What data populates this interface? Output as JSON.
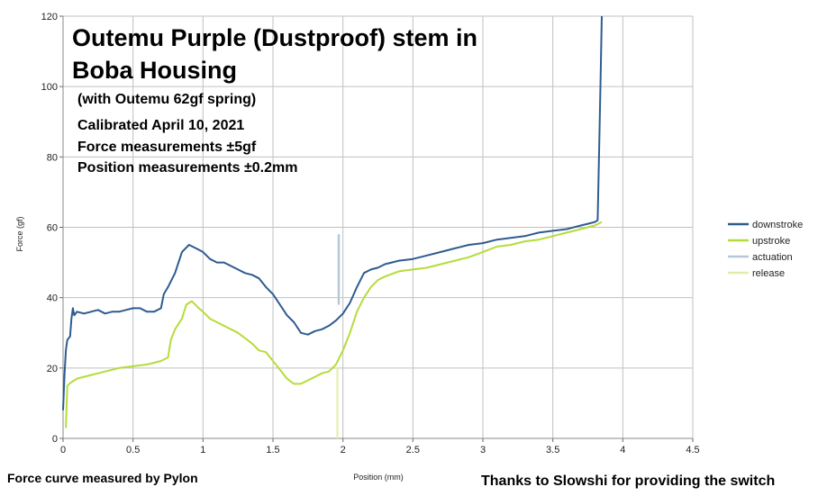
{
  "title_lines": [
    "Outemu Purple (Dustproof) stem in",
    "Boba Housing"
  ],
  "subtitle_lines": [
    "(with Outemu 62gf spring)",
    "Calibrated April 10, 2021",
    "Force measurements ±5gf",
    "Position measurements ±0.2mm"
  ],
  "footer_left": "Force curve measured by Pylon",
  "footer_right": "Thanks to Slowshi for providing the switch",
  "colors": {
    "downstroke": "#2e5b8f",
    "upstroke": "#b5dc3a",
    "actuation": "#b8c7d8",
    "release": "#e0efa8",
    "grid": "#c0c0c0"
  },
  "chart_data": {
    "type": "line",
    "xlabel": "Position (mm)",
    "ylabel": "Force (gf)",
    "xlim": [
      0,
      4.5
    ],
    "ylim": [
      0,
      120
    ],
    "x_ticks": [
      "0",
      "0.5",
      "1",
      "1.5",
      "2",
      "2.5",
      "3",
      "3.5",
      "4",
      "4.5"
    ],
    "y_ticks": [
      "0",
      "20",
      "40",
      "60",
      "80",
      "100",
      "120"
    ],
    "grid": true,
    "legend_position": "right",
    "series": [
      {
        "name": "downstroke",
        "points": [
          [
            0,
            8
          ],
          [
            0.01,
            18
          ],
          [
            0.02,
            25
          ],
          [
            0.03,
            28
          ],
          [
            0.05,
            29
          ],
          [
            0.06,
            34
          ],
          [
            0.07,
            37
          ],
          [
            0.08,
            35
          ],
          [
            0.1,
            36
          ],
          [
            0.15,
            35.5
          ],
          [
            0.2,
            36
          ],
          [
            0.25,
            36.5
          ],
          [
            0.3,
            35.5
          ],
          [
            0.35,
            36
          ],
          [
            0.4,
            36
          ],
          [
            0.45,
            36.5
          ],
          [
            0.5,
            37
          ],
          [
            0.55,
            37
          ],
          [
            0.6,
            36
          ],
          [
            0.65,
            36
          ],
          [
            0.7,
            37
          ],
          [
            0.72,
            41
          ],
          [
            0.75,
            43
          ],
          [
            0.8,
            47
          ],
          [
            0.85,
            53
          ],
          [
            0.9,
            55
          ],
          [
            0.95,
            54
          ],
          [
            1.0,
            53
          ],
          [
            1.05,
            51
          ],
          [
            1.1,
            50
          ],
          [
            1.15,
            50
          ],
          [
            1.2,
            49
          ],
          [
            1.25,
            48
          ],
          [
            1.3,
            47
          ],
          [
            1.35,
            46.5
          ],
          [
            1.4,
            45.5
          ],
          [
            1.45,
            43
          ],
          [
            1.5,
            41
          ],
          [
            1.55,
            38
          ],
          [
            1.6,
            35
          ],
          [
            1.65,
            33
          ],
          [
            1.7,
            30
          ],
          [
            1.75,
            29.5
          ],
          [
            1.8,
            30.5
          ],
          [
            1.85,
            31
          ],
          [
            1.9,
            32
          ],
          [
            1.95,
            33.5
          ],
          [
            2.0,
            35.5
          ],
          [
            2.05,
            38.5
          ],
          [
            2.1,
            43
          ],
          [
            2.15,
            47
          ],
          [
            2.2,
            48
          ],
          [
            2.25,
            48.5
          ],
          [
            2.3,
            49.5
          ],
          [
            2.4,
            50.5
          ],
          [
            2.5,
            51
          ],
          [
            2.6,
            52
          ],
          [
            2.7,
            53
          ],
          [
            2.8,
            54
          ],
          [
            2.9,
            55
          ],
          [
            3.0,
            55.5
          ],
          [
            3.1,
            56.5
          ],
          [
            3.2,
            57
          ],
          [
            3.3,
            57.5
          ],
          [
            3.4,
            58.5
          ],
          [
            3.5,
            59
          ],
          [
            3.6,
            59.5
          ],
          [
            3.7,
            60.5
          ],
          [
            3.75,
            61
          ],
          [
            3.8,
            61.5
          ],
          [
            3.82,
            62
          ],
          [
            3.83,
            80
          ],
          [
            3.84,
            100
          ],
          [
            3.85,
            120
          ]
        ]
      },
      {
        "name": "upstroke",
        "points": [
          [
            0.02,
            3
          ],
          [
            0.03,
            15
          ],
          [
            0.06,
            16
          ],
          [
            0.1,
            17
          ],
          [
            0.15,
            17.5
          ],
          [
            0.2,
            18
          ],
          [
            0.25,
            18.5
          ],
          [
            0.3,
            19
          ],
          [
            0.35,
            19.5
          ],
          [
            0.4,
            20
          ],
          [
            0.5,
            20.5
          ],
          [
            0.6,
            21
          ],
          [
            0.65,
            21.5
          ],
          [
            0.7,
            22
          ],
          [
            0.75,
            23
          ],
          [
            0.77,
            28
          ],
          [
            0.8,
            31
          ],
          [
            0.85,
            34
          ],
          [
            0.88,
            38
          ],
          [
            0.92,
            39
          ],
          [
            0.97,
            37
          ],
          [
            1.0,
            36
          ],
          [
            1.05,
            34
          ],
          [
            1.1,
            33
          ],
          [
            1.15,
            32
          ],
          [
            1.2,
            31
          ],
          [
            1.25,
            30
          ],
          [
            1.3,
            28.5
          ],
          [
            1.35,
            27
          ],
          [
            1.4,
            25
          ],
          [
            1.45,
            24.5
          ],
          [
            1.5,
            22
          ],
          [
            1.55,
            19.5
          ],
          [
            1.6,
            17
          ],
          [
            1.65,
            15.5
          ],
          [
            1.7,
            15.5
          ],
          [
            1.75,
            16.5
          ],
          [
            1.8,
            17.5
          ],
          [
            1.85,
            18.5
          ],
          [
            1.9,
            19
          ],
          [
            1.95,
            21
          ],
          [
            2.0,
            25
          ],
          [
            2.05,
            30
          ],
          [
            2.1,
            36
          ],
          [
            2.15,
            40
          ],
          [
            2.2,
            43
          ],
          [
            2.25,
            45
          ],
          [
            2.3,
            46
          ],
          [
            2.4,
            47.5
          ],
          [
            2.5,
            48
          ],
          [
            2.6,
            48.5
          ],
          [
            2.7,
            49.5
          ],
          [
            2.8,
            50.5
          ],
          [
            2.9,
            51.5
          ],
          [
            3.0,
            53
          ],
          [
            3.1,
            54.5
          ],
          [
            3.2,
            55
          ],
          [
            3.3,
            56
          ],
          [
            3.4,
            56.5
          ],
          [
            3.5,
            57.5
          ],
          [
            3.6,
            58.5
          ],
          [
            3.7,
            59.5
          ],
          [
            3.8,
            60.5
          ],
          [
            3.85,
            61.5
          ]
        ]
      },
      {
        "name": "actuation",
        "points": [
          [
            1.97,
            38
          ],
          [
            1.97,
            58
          ]
        ]
      },
      {
        "name": "release",
        "points": [
          [
            1.96,
            0
          ],
          [
            1.96,
            20
          ]
        ]
      }
    ]
  }
}
